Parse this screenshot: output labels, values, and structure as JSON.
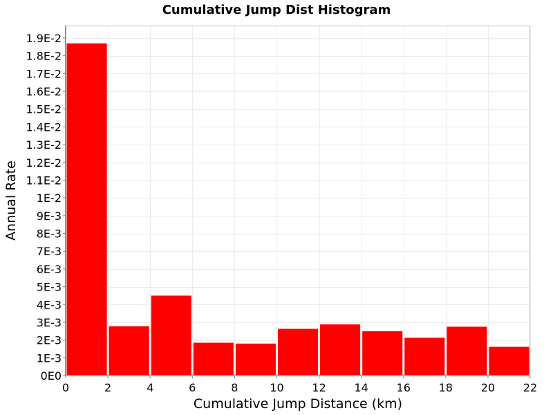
{
  "colors": {
    "bar": "#ff0000",
    "grid": "#ebebeb",
    "plot_border": "#bfbfbf",
    "axis": "#7f7f7f",
    "background": "#ffffff"
  },
  "chart_data": {
    "type": "bar",
    "title": "Cumulative Jump Dist Histogram",
    "xlabel": "Cumulative Jump Distance (km)",
    "ylabel": "Annual Rate",
    "xlim": [
      0,
      22
    ],
    "ylim": [
      0,
      0.0197
    ],
    "grid": true,
    "legend": "none",
    "x_ticks": [
      {
        "value": 0,
        "label": "0"
      },
      {
        "value": 2,
        "label": "2"
      },
      {
        "value": 4,
        "label": "4"
      },
      {
        "value": 6,
        "label": "6"
      },
      {
        "value": 8,
        "label": "8"
      },
      {
        "value": 10,
        "label": "10"
      },
      {
        "value": 12,
        "label": "12"
      },
      {
        "value": 14,
        "label": "14"
      },
      {
        "value": 16,
        "label": "16"
      },
      {
        "value": 18,
        "label": "18"
      },
      {
        "value": 20,
        "label": "20"
      },
      {
        "value": 22,
        "label": "22"
      }
    ],
    "y_ticks": [
      {
        "value": 0,
        "label": "0E0"
      },
      {
        "value": 0.001,
        "label": "1E-3"
      },
      {
        "value": 0.002,
        "label": "2E-3"
      },
      {
        "value": 0.003,
        "label": "3E-3"
      },
      {
        "value": 0.004,
        "label": "4E-3"
      },
      {
        "value": 0.005,
        "label": "5E-3"
      },
      {
        "value": 0.006,
        "label": "6E-3"
      },
      {
        "value": 0.007,
        "label": "7E-3"
      },
      {
        "value": 0.008,
        "label": "8E-3"
      },
      {
        "value": 0.009,
        "label": "9E-3"
      },
      {
        "value": 0.01,
        "label": "1E-2"
      },
      {
        "value": 0.011,
        "label": "1.1E-2"
      },
      {
        "value": 0.012,
        "label": "1.2E-2"
      },
      {
        "value": 0.013,
        "label": "1.3E-2"
      },
      {
        "value": 0.014,
        "label": "1.4E-2"
      },
      {
        "value": 0.015,
        "label": "1.5E-2"
      },
      {
        "value": 0.016,
        "label": "1.6E-2"
      },
      {
        "value": 0.017,
        "label": "1.7E-2"
      },
      {
        "value": 0.018,
        "label": "1.8E-2"
      },
      {
        "value": 0.019,
        "label": "1.9E-2"
      }
    ],
    "bin_width": 2,
    "bins": [
      {
        "x_start": 0,
        "x_end": 2,
        "value": 0.0187
      },
      {
        "x_start": 2,
        "x_end": 4,
        "value": 0.00278
      },
      {
        "x_start": 4,
        "x_end": 6,
        "value": 0.0045
      },
      {
        "x_start": 6,
        "x_end": 8,
        "value": 0.00185
      },
      {
        "x_start": 8,
        "x_end": 10,
        "value": 0.0018
      },
      {
        "x_start": 10,
        "x_end": 12,
        "value": 0.00263
      },
      {
        "x_start": 12,
        "x_end": 14,
        "value": 0.00288
      },
      {
        "x_start": 14,
        "x_end": 16,
        "value": 0.0025
      },
      {
        "x_start": 16,
        "x_end": 18,
        "value": 0.00213
      },
      {
        "x_start": 18,
        "x_end": 20,
        "value": 0.00275
      },
      {
        "x_start": 20,
        "x_end": 22,
        "value": 0.00162
      }
    ]
  }
}
